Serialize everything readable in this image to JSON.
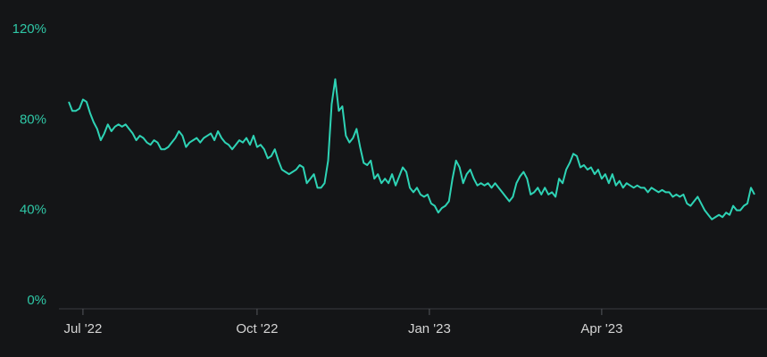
{
  "chart_data": {
    "type": "line",
    "series": [
      {
        "color": "#2ed3b5",
        "values": [
          88,
          84,
          84,
          85,
          89,
          88,
          83,
          79,
          76,
          71,
          74,
          78,
          75,
          77,
          78,
          77,
          78,
          76,
          74,
          71,
          73,
          72,
          70,
          69,
          71,
          70,
          67,
          67,
          68,
          70,
          72,
          75,
          73,
          68,
          70,
          71,
          72,
          70,
          72,
          73,
          74,
          71,
          75,
          72,
          70,
          69,
          67,
          69,
          71,
          70,
          72,
          69,
          73,
          68,
          69,
          67,
          63,
          64,
          67,
          62,
          58,
          57,
          56,
          57,
          58,
          60,
          59,
          52,
          54,
          56,
          50,
          50,
          52,
          62,
          87,
          98,
          84,
          86,
          73,
          70,
          72,
          76,
          68,
          61,
          60,
          62,
          54,
          56,
          52,
          54,
          52,
          56,
          51,
          55,
          59,
          57,
          50,
          48,
          50,
          47,
          46,
          47,
          43,
          42,
          39,
          41,
          42,
          44,
          54,
          62,
          59,
          52,
          56,
          58,
          54,
          51,
          52,
          51,
          52,
          50,
          52,
          50,
          48,
          46,
          44,
          46,
          52,
          55,
          57,
          54,
          47,
          48,
          50,
          47,
          50,
          47,
          48,
          46,
          54,
          52,
          58,
          61,
          65,
          64,
          59,
          60,
          58,
          59,
          56,
          58,
          54,
          56,
          52,
          56,
          51,
          53,
          50,
          52,
          51,
          50,
          51,
          50,
          50,
          48,
          50,
          49,
          48,
          49,
          48,
          48,
          46,
          47,
          46,
          47,
          43,
          42,
          44,
          46,
          43,
          40,
          38,
          36,
          37,
          38,
          37,
          39,
          38,
          42,
          40,
          40,
          42,
          43,
          50,
          47
        ]
      }
    ],
    "xlim": [
      0,
      193
    ],
    "xticks": [
      {
        "value": 4,
        "label": "Jul '22"
      },
      {
        "value": 53,
        "label": "Oct '22"
      },
      {
        "value": 101.5,
        "label": "Jan '23"
      },
      {
        "value": 150,
        "label": "Apr '23"
      }
    ],
    "ylim": [
      0,
      120
    ],
    "yticks": [
      {
        "value": 0,
        "label": "0%"
      },
      {
        "value": 40,
        "label": "40%"
      },
      {
        "value": 80,
        "label": "80%"
      },
      {
        "value": 120,
        "label": "120%"
      }
    ],
    "grid": false
  }
}
